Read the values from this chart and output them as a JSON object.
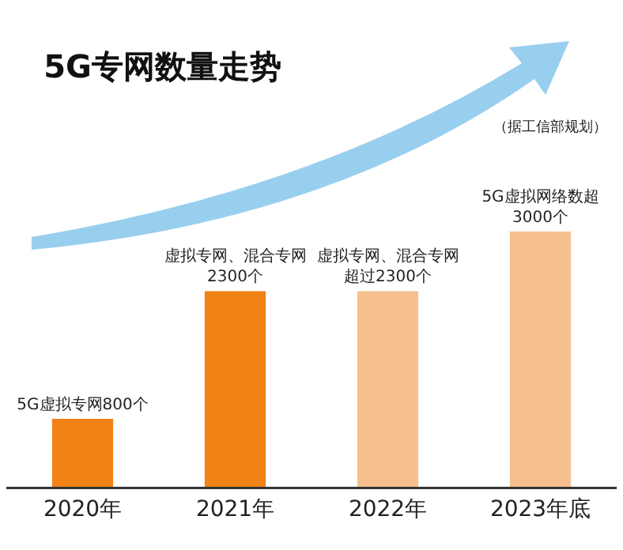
{
  "chart_data": {
    "type": "bar",
    "title": "5G专网数量走势",
    "categories": [
      "2020年",
      "2021年",
      "2022年",
      "2023年底"
    ],
    "values": [
      800,
      2300,
      2300,
      3000
    ],
    "value_labels": [
      "5G虚拟专网800个",
      "虚拟专网、混合专网2300个",
      "虚拟专网、混合专网超过2300个",
      "5G虚拟网络数超3000个"
    ],
    "colors": [
      "#f08216",
      "#f08216",
      "#f6c08e",
      "#f6c08e"
    ],
    "annotations": [
      "（据工信部规划）"
    ]
  }
}
